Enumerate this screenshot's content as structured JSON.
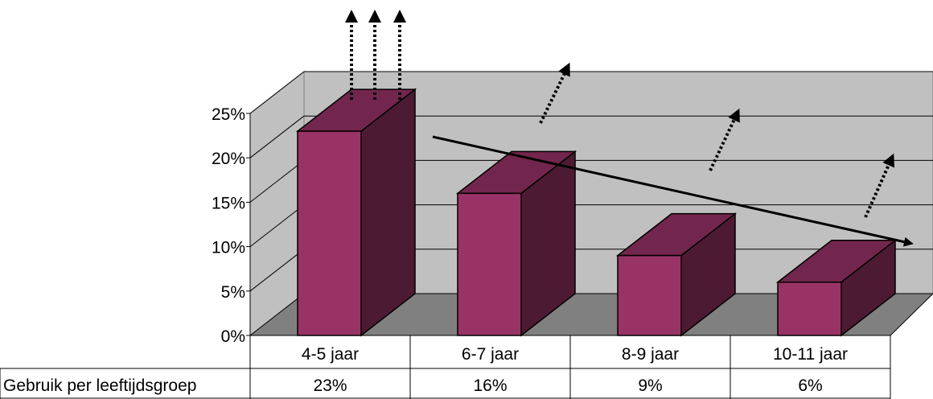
{
  "chart_data": {
    "type": "bar",
    "categories": [
      "4-5 jaar",
      "6-7 jaar",
      "8-9 jaar",
      "10-11 jaar"
    ],
    "series": [
      {
        "name": "Gebruik per leeftijdsgroep",
        "values": [
          23,
          16,
          9,
          6
        ],
        "labels": [
          "23%",
          "16%",
          "9%",
          "6%"
        ]
      }
    ],
    "y_ticks": [
      "0%",
      "5%",
      "10%",
      "15%",
      "20%",
      "25%"
    ],
    "ylim": [
      0,
      25
    ],
    "grid": true,
    "three_d": true,
    "data_table": true,
    "bar_color": "#993366",
    "annotations": [
      "decreasing trend arrow",
      "dotted upward arrows above each bar"
    ]
  }
}
